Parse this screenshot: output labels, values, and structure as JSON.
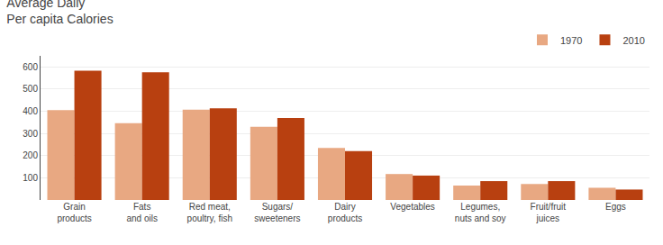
{
  "chart_data": {
    "type": "bar",
    "title": "Average Daily\nPer capita Calories",
    "categories": [
      "Grain\nproducts",
      "Fats\nand oils",
      "Red meat,\npoultry, fish",
      "Sugars/\nsweeteners",
      "Dairy\nproducts",
      "Vegetables",
      "Legumes,\nnuts and soy",
      "Fruit/fruit\njuices",
      "Eggs"
    ],
    "series": [
      {
        "name": "1970",
        "color": "#E8A882",
        "values": [
          405,
          346,
          407,
          330,
          235,
          117,
          65,
          72,
          55
        ]
      },
      {
        "name": "2010",
        "color": "#B84010",
        "values": [
          583,
          576,
          413,
          370,
          220,
          110,
          85,
          85,
          47
        ]
      }
    ],
    "ylim": [
      0,
      650
    ],
    "yticks": [
      100,
      200,
      300,
      400,
      500,
      600
    ],
    "grid": true,
    "legend": "upper right"
  }
}
